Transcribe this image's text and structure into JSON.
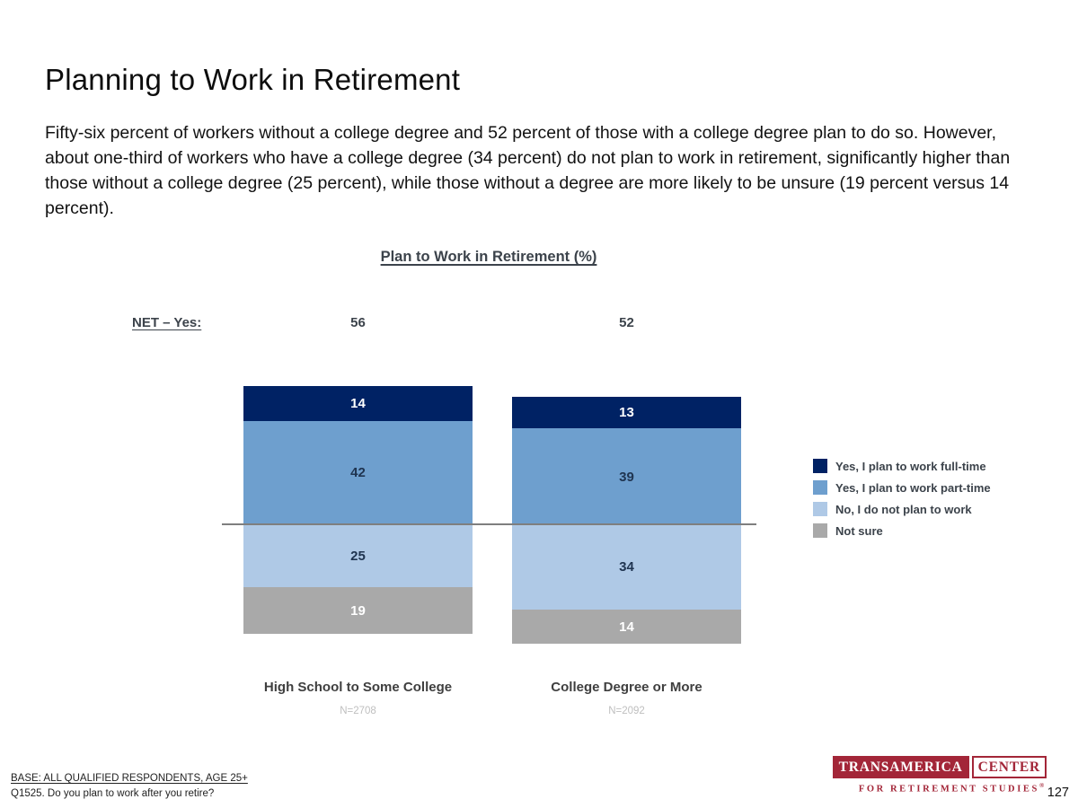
{
  "slide": {
    "title": "Planning to Work in Retirement",
    "paragraph": "Fifty-six percent of workers without a college degree and 52 percent of those with a college degree plan to do so. However, about one-third of workers who have a college degree (34 percent) do not plan to work in retirement, significantly higher than those without a college degree (25 percent), while those without a degree are more likely to be unsure (19 percent versus 14 percent).",
    "page_number": "127"
  },
  "chart_data": {
    "type": "bar",
    "stacked": true,
    "title": "Plan to Work in Retirement (%)",
    "net_label": "NET – Yes:",
    "categories": [
      "High School to Some College",
      "College Degree or More"
    ],
    "bases": [
      "N=2708",
      "N=2092"
    ],
    "net_yes": [
      56,
      52
    ],
    "series": [
      {
        "name": "Yes, I plan to work full-time",
        "color": "#002264",
        "text_color": "#ffffff",
        "values": [
          14,
          13
        ]
      },
      {
        "name": "Yes, I plan to work part-time",
        "color": "#6E9FCE",
        "text_color": "#1F3450",
        "values": [
          42,
          39
        ]
      },
      {
        "name": "No, I do not plan to work",
        "color": "#AFC9E6",
        "text_color": "#1F3450",
        "values": [
          25,
          34
        ]
      },
      {
        "name": "Not sure",
        "color": "#A9A9A9",
        "text_color": "#ffffff",
        "values": [
          19,
          14
        ]
      }
    ],
    "layout_hint": "two stacked columns; gray baseline separates Yes segments (above line) from No / Not sure segments (below line); legend at right",
    "gridline_color": "#7f7f7f"
  },
  "footer": {
    "base_line": "BASE: ALL QUALIFIED RESPONDENTS, AGE 25+",
    "question_line": "Q1525. Do you plan to work after you retire?"
  },
  "logo": {
    "primary": "TRANSAMERICA",
    "secondary": "CENTER",
    "tagline": "FOR RETIREMENT STUDIES",
    "registered": "®",
    "brand_color": "#A32638"
  }
}
